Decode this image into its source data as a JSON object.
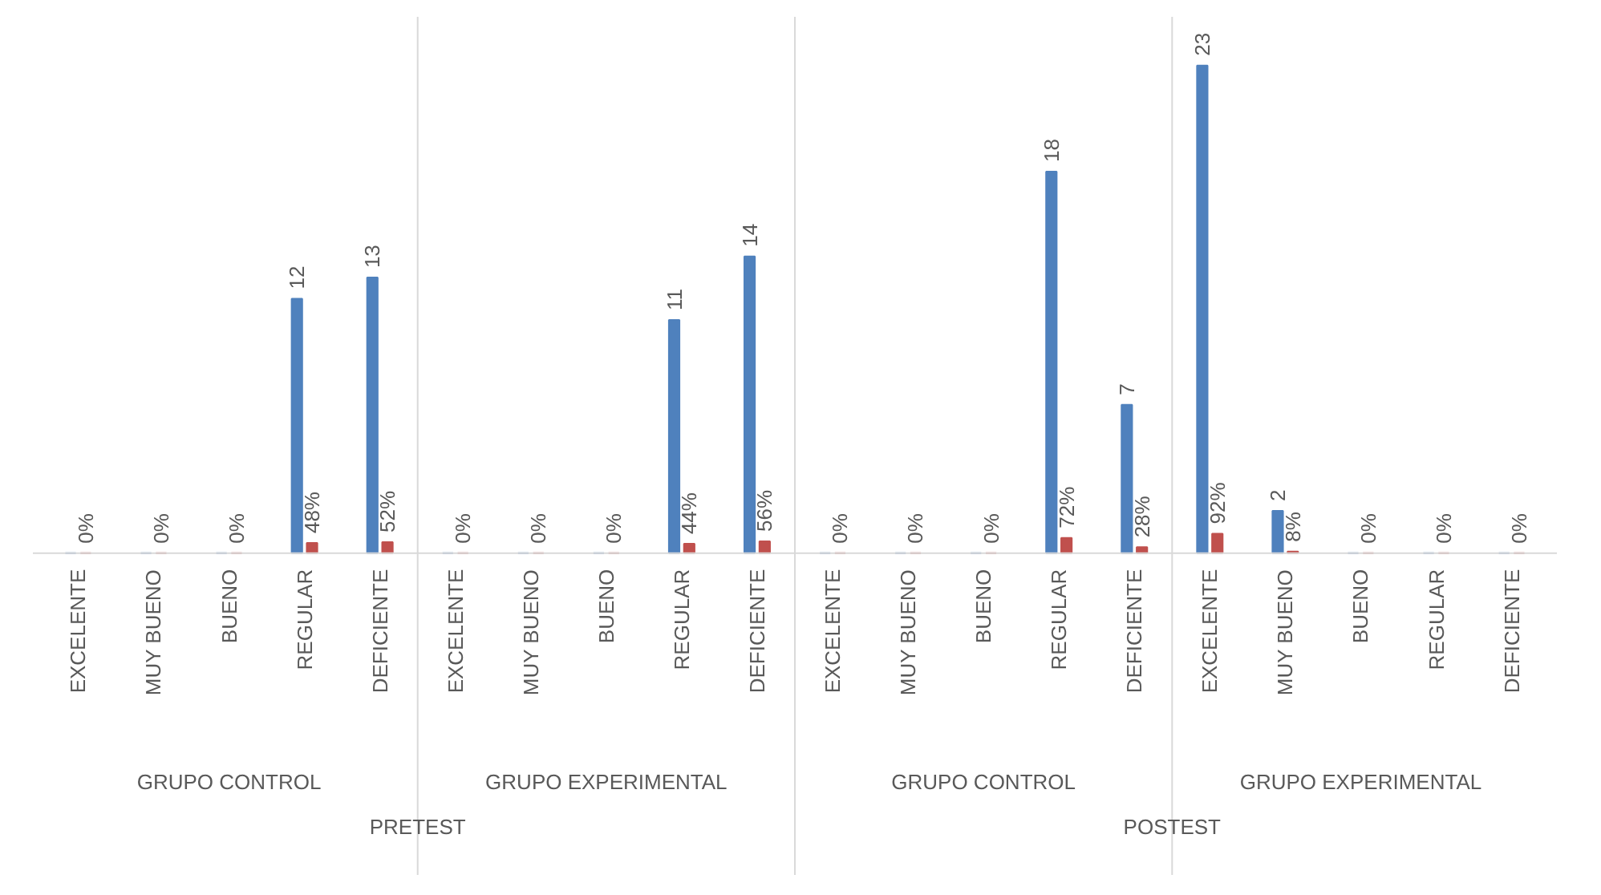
{
  "chart_data": {
    "type": "bar",
    "categories": [
      "EXCELENTE",
      "MUY BUENO",
      "BUENO",
      "REGULAR",
      "DEFICIENTE",
      "EXCELENTE",
      "MUY BUENO",
      "BUENO",
      "REGULAR",
      "DEFICIENTE",
      "EXCELENTE",
      "MUY BUENO",
      "BUENO",
      "REGULAR",
      "DEFICIENTE",
      "EXCELENTE",
      "MUY BUENO",
      "BUENO",
      "REGULAR",
      "DEFICIENTE"
    ],
    "annotations": [
      "GRUPO CONTROL",
      "GRUPO EXPERIMENTAL",
      "GRUPO CONTROL",
      "GRUPO EXPERIMENTAL",
      "PRETEST",
      "POSTEST"
    ],
    "series": [
      {
        "color": "#4f81bd",
        "values": [
          0,
          0,
          0,
          12,
          13,
          0,
          0,
          0,
          11,
          14,
          0,
          0,
          0,
          18,
          7,
          23,
          2,
          0,
          0,
          0
        ],
        "value_labels": [
          null,
          null,
          null,
          "12",
          "13",
          null,
          null,
          null,
          "11",
          "14",
          null,
          null,
          null,
          "18",
          "7",
          "23",
          "2",
          null,
          null,
          null
        ]
      },
      {
        "color": "#c0504d",
        "values": [
          0,
          0,
          0,
          0.48,
          0.52,
          0,
          0,
          0,
          0.44,
          0.56,
          0,
          0,
          0,
          0.72,
          0.28,
          0.92,
          0.08,
          0,
          0,
          0
        ],
        "value_labels": [
          "0%",
          "0%",
          "0%",
          "48%",
          "52%",
          "0%",
          "0%",
          "0%",
          "44%",
          "56%",
          "0%",
          "0%",
          "0%",
          "72%",
          "28%",
          "92%",
          "8%",
          "0%",
          "0%",
          "0%"
        ]
      }
    ],
    "grid": false
  }
}
